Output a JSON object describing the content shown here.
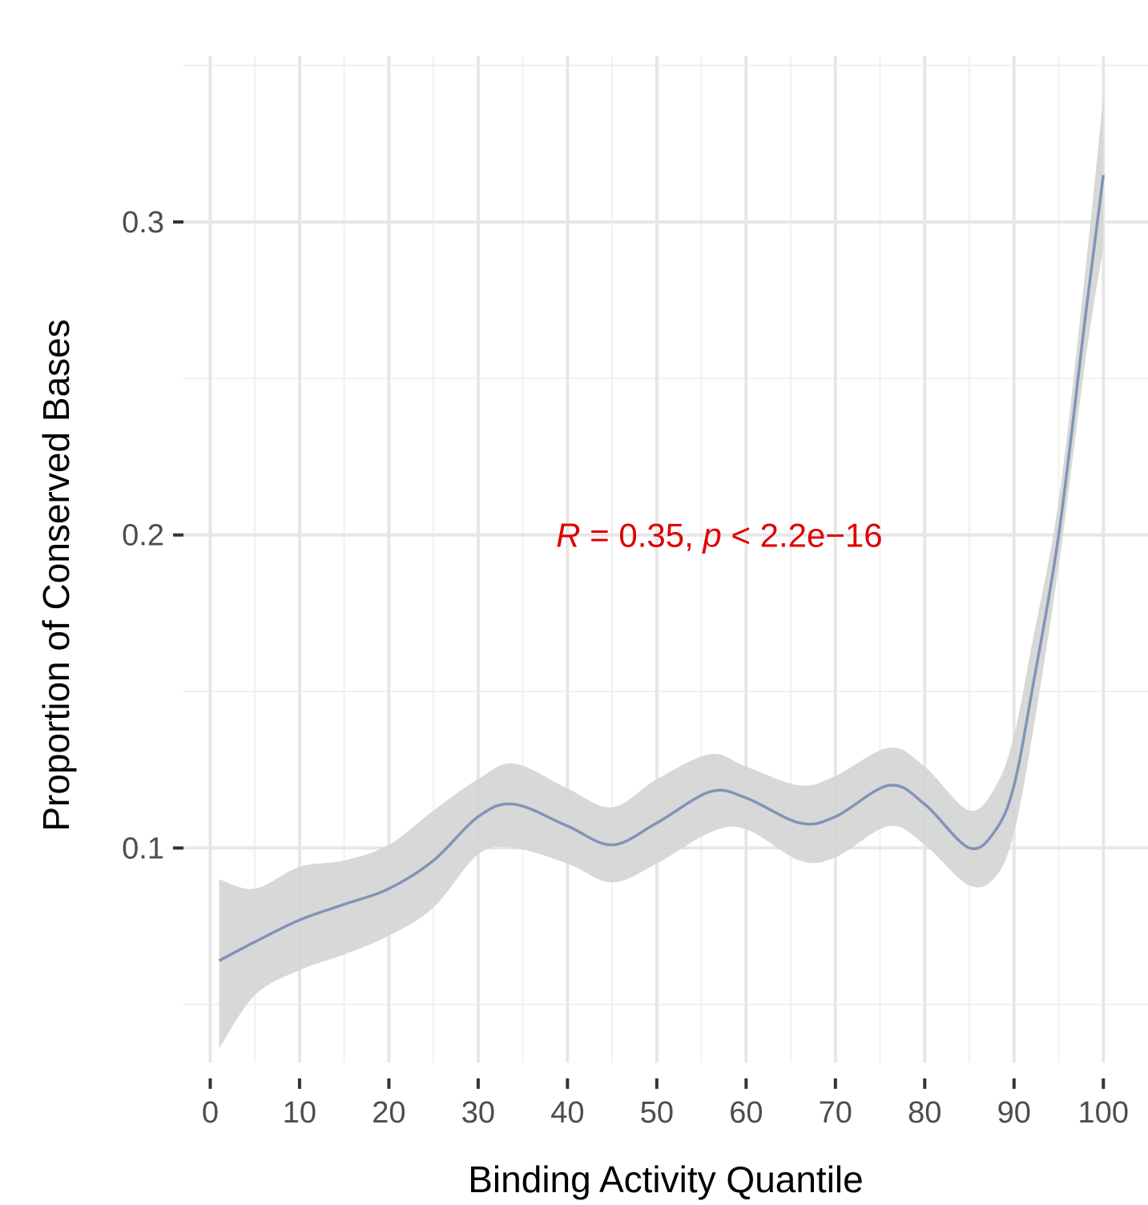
{
  "chart_data": {
    "type": "line",
    "title": "",
    "xlabel": "Binding Activity Quantile",
    "ylabel": "Proportion of Conserved Bases",
    "xlim": [
      -3,
      105
    ],
    "ylim": [
      0.0315,
      0.353
    ],
    "x_ticks": [
      0,
      10,
      20,
      30,
      40,
      50,
      60,
      70,
      80,
      90,
      100
    ],
    "y_ticks": [
      0.1,
      0.2,
      0.3
    ],
    "y_tick_labels": [
      "0.1",
      "0.2",
      "0.3"
    ],
    "x_minor_gridlines": [
      5,
      15,
      25,
      35,
      45,
      55,
      65,
      75,
      85,
      95
    ],
    "y_minor_gridlines": [
      0.05,
      0.15,
      0.25,
      0.35
    ],
    "grid": true,
    "legend": "none",
    "annotation": {
      "r_symbol": "R",
      "r_rest": " = 0.35, ",
      "p_symbol": "p",
      "p_rest": " < 2.2e−16",
      "x": 57,
      "y": 0.2,
      "color": "#e00000"
    },
    "series": [
      {
        "color": "#8293b8",
        "band_color": "#d4d4d4",
        "x": [
          1,
          5,
          10,
          15,
          20,
          25,
          30,
          34,
          40,
          45,
          50,
          56,
          60,
          66,
          70,
          76,
          80,
          85,
          88,
          90,
          92,
          95,
          98,
          100
        ],
        "y": [
          0.064,
          0.07,
          0.077,
          0.082,
          0.087,
          0.096,
          0.11,
          0.114,
          0.107,
          0.101,
          0.108,
          0.118,
          0.116,
          0.108,
          0.11,
          0.12,
          0.114,
          0.1,
          0.106,
          0.12,
          0.15,
          0.2,
          0.27,
          0.315
        ],
        "lower": [
          0.036,
          0.053,
          0.061,
          0.066,
          0.072,
          0.081,
          0.098,
          0.1,
          0.095,
          0.089,
          0.095,
          0.105,
          0.106,
          0.096,
          0.097,
          0.107,
          0.101,
          0.088,
          0.091,
          0.105,
          0.135,
          0.19,
          0.256,
          0.292
        ],
        "upper": [
          0.09,
          0.087,
          0.094,
          0.096,
          0.101,
          0.112,
          0.122,
          0.127,
          0.119,
          0.113,
          0.122,
          0.13,
          0.126,
          0.12,
          0.123,
          0.132,
          0.126,
          0.112,
          0.12,
          0.136,
          0.165,
          0.211,
          0.285,
          0.34
        ]
      }
    ]
  }
}
